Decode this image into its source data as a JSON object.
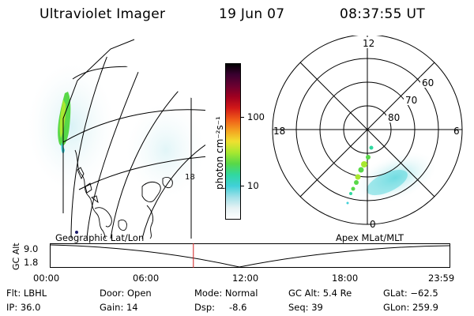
{
  "header": {
    "instrument": "Ultraviolet Imager",
    "date": "19 Jun 07",
    "time": "08:37:55 UT"
  },
  "colorbar": {
    "label": "photon cm⁻²s⁻¹",
    "ticks": [
      "100",
      "10"
    ],
    "scale": "log",
    "colors": [
      "#000000",
      "#3a0030",
      "#6a0030",
      "#a00020",
      "#d21818",
      "#ef5a18",
      "#f4a020",
      "#f0e030",
      "#a8e830",
      "#58d848",
      "#30d8a0",
      "#40d0d8",
      "#a0e0e8",
      "#e6f2f4",
      "#ffffff"
    ]
  },
  "geo_panel": {
    "label": "Geographic Lat/Lon",
    "map_number": "18"
  },
  "polar_panel": {
    "label": "Apex MLat/MLT",
    "mlt_labels": {
      "top": "12",
      "left": "18",
      "right": "6",
      "bottom": "0"
    },
    "lat_labels": [
      "60",
      "70",
      "80"
    ]
  },
  "altitude_plot": {
    "ylabel": "GC Alt",
    "yticks": [
      "9.0",
      "1.8"
    ],
    "xticks": [
      "00:00",
      "06:00",
      "12:00",
      "18:00",
      "23:59"
    ],
    "current_time_fraction": 0.358
  },
  "status": {
    "flt": "Flt: LBHL",
    "ip": "IP: 36.0",
    "door": "Door: Open",
    "gain": "Gain: 14",
    "mode": "Mode: Normal",
    "dsp_label": "Dsp:",
    "dsp_value": "-8.6",
    "gc_alt": "GC Alt: 5.4 Re",
    "seq": "Seq: 39",
    "glat": "GLat: −62.5",
    "glon": "GLon: 259.9"
  }
}
